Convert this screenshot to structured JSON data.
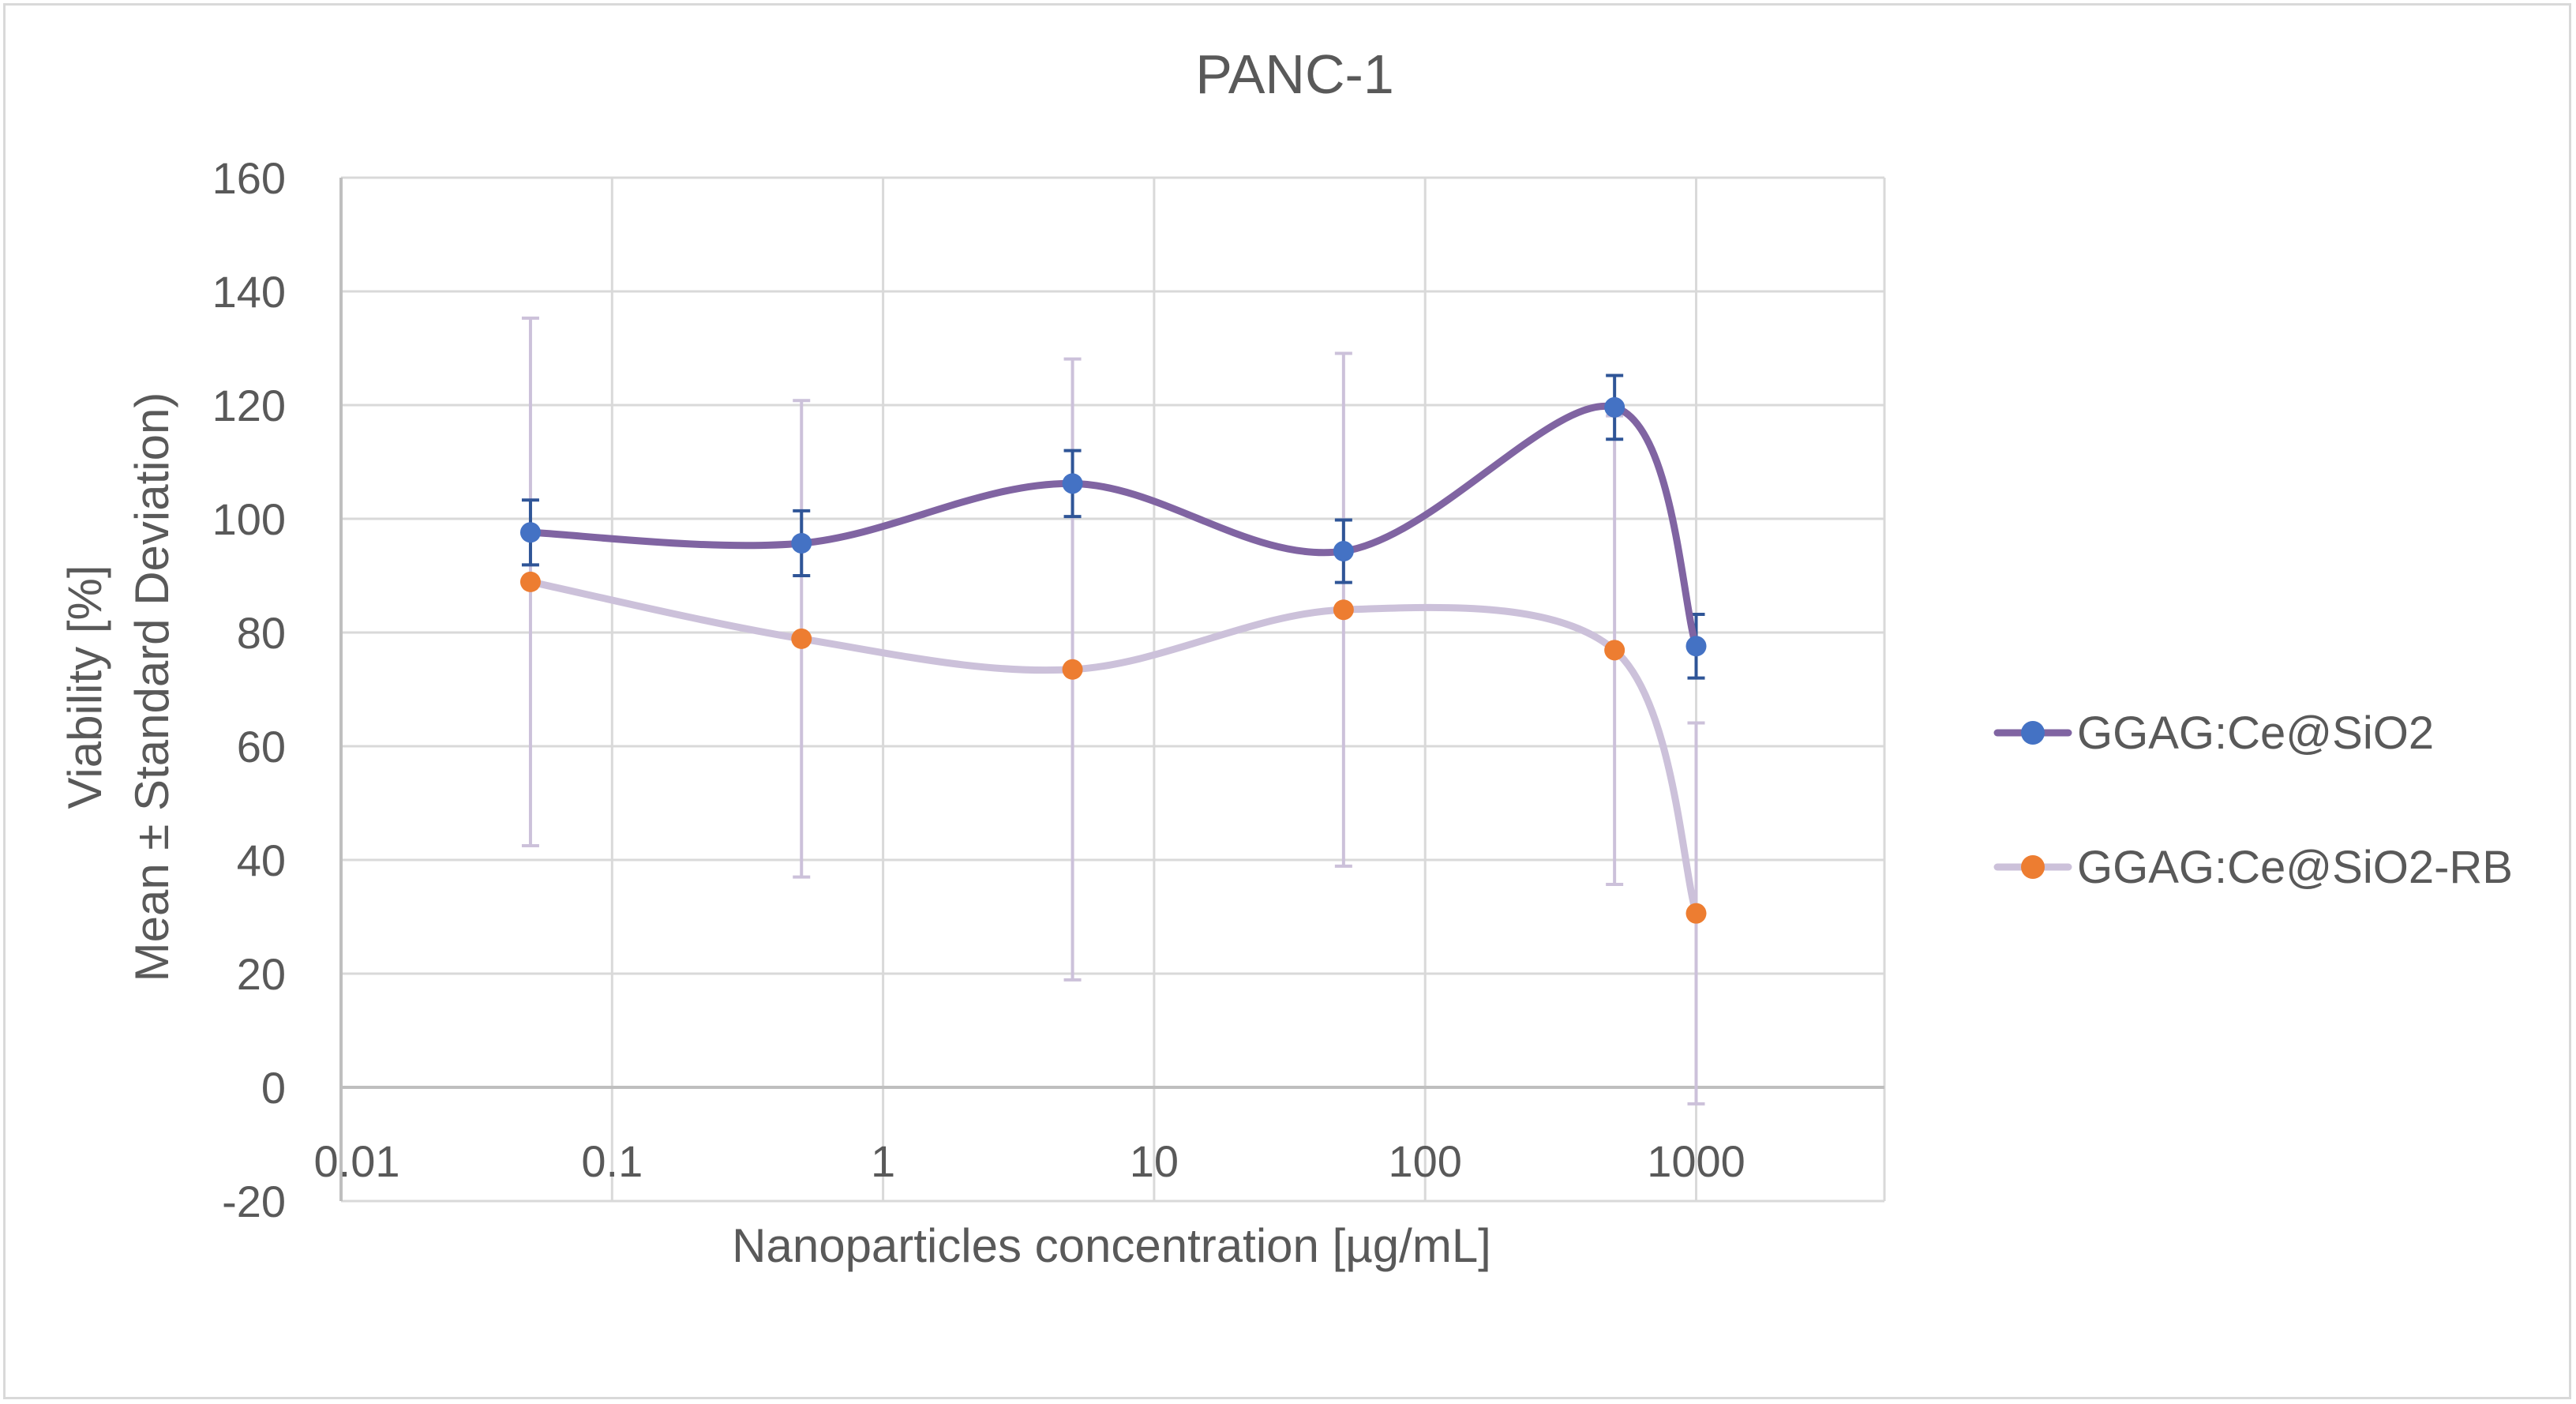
{
  "chart_data": {
    "type": "line",
    "title": "PANC-1",
    "xlabel": "Nanoparticles concentration [µg/mL]",
    "ylabel_lines": [
      "Viability [%]",
      "Mean ± Standard Deviation)"
    ],
    "xscale": "log",
    "xlim": [
      0.01,
      5000
    ],
    "ylim": [
      -20,
      160
    ],
    "x_ticks": [
      0.01,
      0.1,
      1,
      10,
      100,
      1000
    ],
    "x_tick_labels": [
      "0.01",
      "0.1",
      "1",
      "10",
      "100",
      "1000"
    ],
    "y_ticks": [
      -20,
      0,
      20,
      40,
      60,
      80,
      100,
      120,
      140,
      160
    ],
    "y_tick_labels": [
      "-20",
      "0",
      "20",
      "40",
      "60",
      "80",
      "100",
      "120",
      "140",
      "160"
    ],
    "grid": true,
    "smoothed": true,
    "legend_position": "right",
    "x": [
      0.05,
      0.5,
      5,
      50,
      500,
      1000
    ],
    "series": [
      {
        "name": "GGAG:Ce@SiO2",
        "values": [
          97.6,
          95.7,
          106.2,
          94.3,
          119.6,
          77.6
        ],
        "std_dev": [
          5.7,
          5.7,
          5.8,
          5.5,
          5.6,
          5.6
        ],
        "line_color": "#8064A2",
        "marker_color": "#4472C4",
        "error_color": "#2F5597"
      },
      {
        "name": "GGAG:Ce@SiO2-RB",
        "values": [
          88.9,
          78.9,
          73.5,
          84.0,
          76.9,
          30.6
        ],
        "std_dev": [
          46.4,
          41.9,
          54.6,
          45.1,
          41.2,
          33.5
        ],
        "line_color": "#CCC1DA",
        "marker_color": "#ED7D31",
        "error_color": "#CCC1DA"
      }
    ]
  }
}
